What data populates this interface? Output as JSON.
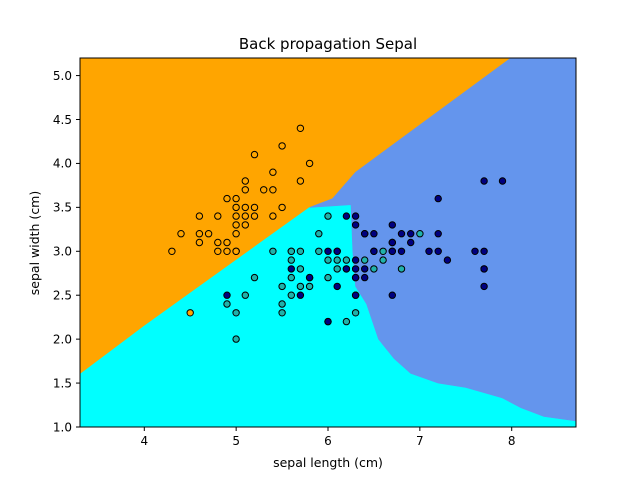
{
  "chart_data": {
    "type": "scatter",
    "title": "Back propagation Sepal",
    "xlabel": "sepal length (cm)",
    "ylabel": "sepal width (cm)",
    "xlim": [
      3.3,
      8.7
    ],
    "ylim": [
      1.0,
      5.2
    ],
    "xticks": [
      4,
      5,
      6,
      7,
      8
    ],
    "yticks": [
      1.0,
      1.5,
      2.0,
      2.5,
      3.0,
      3.5,
      4.0,
      4.5,
      5.0
    ],
    "grid": false,
    "colors": {
      "region_setosa": "#ffa500",
      "region_versicolor": "#00ffff",
      "region_virginica": "#6495ed",
      "point_setosa": "#ffa500",
      "point_versicolor": "#20b2aa",
      "point_virginica": "#000080",
      "point_edge": "#000000"
    },
    "regions": [
      {
        "class": "setosa",
        "polygon": [
          [
            3.3,
            1.6
          ],
          [
            3.3,
            5.2
          ],
          [
            7.99,
            5.2
          ],
          [
            6.3,
            3.9
          ],
          [
            6.05,
            3.6
          ],
          [
            5.8,
            3.5
          ],
          [
            4.0,
            2.15
          ]
        ]
      },
      {
        "class": "versicolor",
        "polygon": [
          [
            3.3,
            1.0
          ],
          [
            3.3,
            1.6
          ],
          [
            4.0,
            2.15
          ],
          [
            5.8,
            3.5
          ],
          [
            6.25,
            3.53
          ],
          [
            6.27,
            3.0
          ],
          [
            6.3,
            2.6
          ],
          [
            6.42,
            2.4
          ],
          [
            6.55,
            2.0
          ],
          [
            6.72,
            1.78
          ],
          [
            6.9,
            1.61
          ],
          [
            7.2,
            1.5
          ],
          [
            7.5,
            1.45
          ],
          [
            7.9,
            1.33
          ],
          [
            8.1,
            1.22
          ],
          [
            8.35,
            1.12
          ],
          [
            8.7,
            1.07
          ],
          [
            8.7,
            1.0
          ]
        ]
      },
      {
        "class": "virginica",
        "polygon": [
          [
            6.25,
            3.53
          ],
          [
            5.8,
            3.5
          ],
          [
            6.05,
            3.6
          ],
          [
            6.3,
            3.9
          ],
          [
            7.99,
            5.2
          ],
          [
            8.7,
            5.2
          ],
          [
            8.7,
            1.07
          ],
          [
            8.35,
            1.12
          ],
          [
            8.1,
            1.22
          ],
          [
            7.9,
            1.33
          ],
          [
            7.5,
            1.45
          ],
          [
            7.2,
            1.5
          ],
          [
            6.9,
            1.61
          ],
          [
            6.72,
            1.78
          ],
          [
            6.55,
            2.0
          ],
          [
            6.42,
            2.4
          ],
          [
            6.3,
            2.6
          ],
          [
            6.27,
            3.0
          ]
        ]
      }
    ],
    "series": [
      {
        "class": "setosa",
        "points": [
          [
            4.3,
            3.0
          ],
          [
            4.4,
            3.2
          ],
          [
            4.6,
            3.1
          ],
          [
            4.6,
            3.2
          ],
          [
            4.6,
            3.4
          ],
          [
            4.7,
            3.2
          ],
          [
            4.8,
            3.0
          ],
          [
            4.8,
            3.1
          ],
          [
            4.8,
            3.4
          ],
          [
            4.9,
            3.0
          ],
          [
            4.9,
            3.1
          ],
          [
            4.9,
            3.6
          ],
          [
            5.0,
            3.0
          ],
          [
            5.0,
            3.2
          ],
          [
            5.0,
            3.3
          ],
          [
            5.0,
            3.4
          ],
          [
            5.0,
            3.5
          ],
          [
            5.0,
            3.6
          ],
          [
            5.1,
            3.3
          ],
          [
            5.1,
            3.4
          ],
          [
            5.1,
            3.5
          ],
          [
            5.1,
            3.7
          ],
          [
            5.1,
            3.8
          ],
          [
            5.2,
            3.4
          ],
          [
            5.2,
            3.5
          ],
          [
            5.2,
            4.1
          ],
          [
            5.3,
            3.7
          ],
          [
            5.4,
            3.4
          ],
          [
            5.4,
            3.7
          ],
          [
            5.4,
            3.9
          ],
          [
            5.5,
            3.5
          ],
          [
            5.5,
            4.2
          ],
          [
            5.7,
            3.8
          ],
          [
            5.8,
            4.0
          ],
          [
            5.7,
            4.4
          ],
          [
            4.5,
            2.3
          ],
          [
            5.0,
            3.0
          ]
        ]
      },
      {
        "class": "versicolor",
        "points": [
          [
            4.9,
            2.4
          ],
          [
            5.0,
            2.0
          ],
          [
            5.0,
            2.3
          ],
          [
            5.1,
            2.5
          ],
          [
            5.2,
            2.7
          ],
          [
            5.4,
            3.0
          ],
          [
            5.5,
            2.3
          ],
          [
            5.5,
            2.4
          ],
          [
            5.5,
            2.6
          ],
          [
            5.6,
            2.5
          ],
          [
            5.6,
            2.7
          ],
          [
            5.6,
            2.9
          ],
          [
            5.6,
            3.0
          ],
          [
            5.7,
            2.6
          ],
          [
            5.7,
            2.8
          ],
          [
            5.7,
            3.0
          ],
          [
            5.8,
            2.6
          ],
          [
            5.8,
            2.7
          ],
          [
            5.9,
            3.0
          ],
          [
            5.9,
            3.2
          ],
          [
            6.0,
            2.2
          ],
          [
            6.0,
            2.7
          ],
          [
            6.0,
            2.9
          ],
          [
            6.0,
            3.4
          ],
          [
            6.1,
            2.8
          ],
          [
            6.1,
            2.9
          ],
          [
            6.1,
            3.0
          ],
          [
            6.2,
            2.2
          ],
          [
            6.2,
            2.9
          ],
          [
            6.3,
            2.3
          ],
          [
            6.3,
            2.5
          ],
          [
            6.4,
            2.9
          ],
          [
            6.4,
            3.2
          ],
          [
            6.6,
            2.9
          ],
          [
            6.6,
            3.0
          ],
          [
            6.7,
            3.0
          ],
          [
            6.7,
            3.1
          ],
          [
            6.8,
            2.8
          ],
          [
            7.0,
            3.2
          ],
          [
            5.6,
            3.0
          ],
          [
            6.2,
            2.8
          ],
          [
            6.3,
            2.7
          ],
          [
            6.5,
            2.8
          ]
        ]
      },
      {
        "class": "virginica",
        "points": [
          [
            4.9,
            2.5
          ],
          [
            5.6,
            2.8
          ],
          [
            5.7,
            2.5
          ],
          [
            5.8,
            2.7
          ],
          [
            6.0,
            3.0
          ],
          [
            6.0,
            2.2
          ],
          [
            6.1,
            2.6
          ],
          [
            6.1,
            3.0
          ],
          [
            6.2,
            2.8
          ],
          [
            6.2,
            3.4
          ],
          [
            6.3,
            2.5
          ],
          [
            6.3,
            2.7
          ],
          [
            6.3,
            2.8
          ],
          [
            6.3,
            2.9
          ],
          [
            6.3,
            3.3
          ],
          [
            6.3,
            3.4
          ],
          [
            6.4,
            2.7
          ],
          [
            6.4,
            2.8
          ],
          [
            6.4,
            3.2
          ],
          [
            6.5,
            3.0
          ],
          [
            6.5,
            3.2
          ],
          [
            6.7,
            2.5
          ],
          [
            6.7,
            3.0
          ],
          [
            6.7,
            3.1
          ],
          [
            6.7,
            3.3
          ],
          [
            6.8,
            3.0
          ],
          [
            6.8,
            3.2
          ],
          [
            6.9,
            3.1
          ],
          [
            6.9,
            3.2
          ],
          [
            7.1,
            3.0
          ],
          [
            7.2,
            3.0
          ],
          [
            7.2,
            3.2
          ],
          [
            7.2,
            3.6
          ],
          [
            7.3,
            2.9
          ],
          [
            7.6,
            3.0
          ],
          [
            7.7,
            2.6
          ],
          [
            7.7,
            2.8
          ],
          [
            7.7,
            3.0
          ],
          [
            7.7,
            3.8
          ],
          [
            7.9,
            3.8
          ],
          [
            6.5,
            3.0
          ],
          [
            7.7,
            2.8
          ]
        ]
      }
    ]
  }
}
